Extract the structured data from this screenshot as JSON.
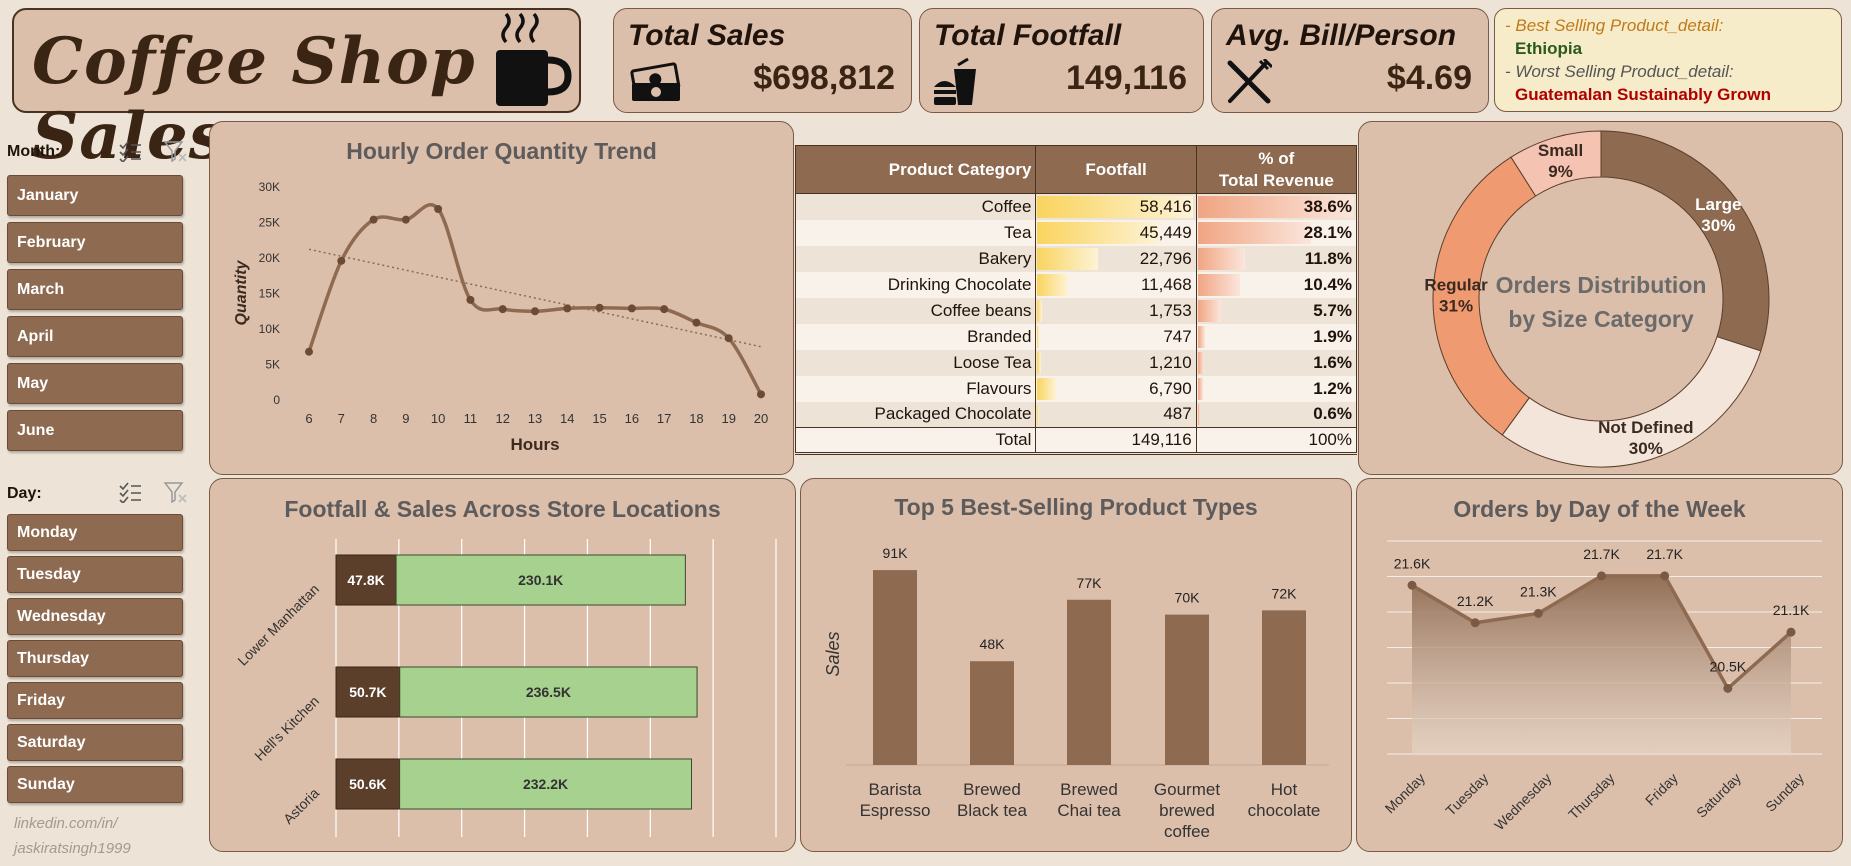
{
  "header": {
    "title": "Coffee Shop Sales"
  },
  "kpis": {
    "total_sales": {
      "label": "Total Sales",
      "value": "$698,812"
    },
    "total_footfall": {
      "label": "Total Footfall",
      "value": "149,116"
    },
    "avg_bill": {
      "label": "Avg. Bill/Person",
      "value": "$4.69"
    }
  },
  "best": {
    "best_label": "- Best Selling Product_detail:",
    "best_value": "Ethiopia",
    "worst_label": "- Worst Selling Product_detail:",
    "worst_value": "Guatemalan Sustainably Grown"
  },
  "slicers": {
    "month": {
      "label": "Month:",
      "items": [
        "January",
        "February",
        "March",
        "April",
        "May",
        "June"
      ]
    },
    "day": {
      "label": "Day:",
      "items": [
        "Monday",
        "Tuesday",
        "Wednesday",
        "Thursday",
        "Friday",
        "Saturday",
        "Sunday"
      ]
    }
  },
  "footer": {
    "line1": "linkedin.com/in/",
    "line2": "jaskiratsingh1999"
  },
  "table": {
    "headers": [
      "Product Category",
      "Footfall",
      "% of",
      "Total Revenue"
    ],
    "rows": [
      {
        "category": "Coffee",
        "footfall": "58,416",
        "pct": "38.6%",
        "footfall_n": 58416,
        "pct_n": 38.6
      },
      {
        "category": "Tea",
        "footfall": "45,449",
        "pct": "28.1%",
        "footfall_n": 45449,
        "pct_n": 28.1
      },
      {
        "category": "Bakery",
        "footfall": "22,796",
        "pct": "11.8%",
        "footfall_n": 22796,
        "pct_n": 11.8
      },
      {
        "category": "Drinking Chocolate",
        "footfall": "11,468",
        "pct": "10.4%",
        "footfall_n": 11468,
        "pct_n": 10.4
      },
      {
        "category": "Coffee beans",
        "footfall": "1,753",
        "pct": "5.7%",
        "footfall_n": 1753,
        "pct_n": 5.7
      },
      {
        "category": "Branded",
        "footfall": "747",
        "pct": "1.9%",
        "footfall_n": 747,
        "pct_n": 1.9
      },
      {
        "category": "Loose Tea",
        "footfall": "1,210",
        "pct": "1.6%",
        "footfall_n": 1210,
        "pct_n": 1.6
      },
      {
        "category": "Flavours",
        "footfall": "6,790",
        "pct": "1.2%",
        "footfall_n": 6790,
        "pct_n": 1.2
      },
      {
        "category": "Packaged Chocolate",
        "footfall": "487",
        "pct": "0.6%",
        "footfall_n": 487,
        "pct_n": 0.6
      }
    ],
    "total": {
      "label": "Total",
      "footfall": "149,116",
      "pct": "100%"
    }
  },
  "colors": {
    "brown": "#8e6a51",
    "dark": "#5b3f2b",
    "green": "#a6d18e",
    "peach": "#ef9a70",
    "pink": "#f5c3b1",
    "cream": "#f3e5d9"
  },
  "chart_data": [
    {
      "type": "line",
      "title": "Hourly Order Quantity Trend",
      "xlabel": "Hours",
      "ylabel": "Quantity",
      "x": [
        6,
        7,
        8,
        9,
        10,
        11,
        12,
        13,
        14,
        15,
        16,
        17,
        18,
        19,
        20
      ],
      "values": [
        6800,
        19600,
        25400,
        25400,
        26900,
        14100,
        12800,
        12500,
        12900,
        13000,
        12900,
        12800,
        10900,
        8700,
        800
      ],
      "ylim": [
        0,
        30000
      ],
      "yticks": [
        "0",
        "5K",
        "10K",
        "15K",
        "20K",
        "25K",
        "30K"
      ],
      "trendline": true
    },
    {
      "type": "bar",
      "title": "Footfall & Sales Across Store Locations",
      "categories": [
        "Lower Manhattan",
        "Hell's Kitchen",
        "Astoria"
      ],
      "series": [
        {
          "values": [
            47.8,
            50.7,
            50.6
          ],
          "labels": [
            "47.8K",
            "50.7K",
            "50.6K"
          ]
        },
        {
          "values": [
            230.1,
            236.5,
            232.2
          ],
          "labels": [
            "230.1K",
            "236.5K",
            "232.2K"
          ]
        }
      ],
      "stacked": true,
      "orientation": "horizontal",
      "xlim": [
        0,
        350
      ]
    },
    {
      "type": "pie",
      "title": "Orders Distribution by Size Category",
      "title_lines": [
        "Orders Distribution",
        "by Size Category"
      ],
      "categories": [
        "Large",
        "Not Defined",
        "Regular",
        "Small"
      ],
      "values": [
        30,
        30,
        31,
        9
      ],
      "labels": [
        "30%",
        "30%",
        "31%",
        "9%"
      ]
    },
    {
      "type": "bar",
      "title": "Top 5 Best-Selling Product Types",
      "ylabel": "Sales",
      "categories": [
        "Barista Espresso",
        "Brewed Black tea",
        "Brewed Chai tea",
        "Gourmet brewed coffee",
        "Hot chocolate"
      ],
      "category_lines": [
        [
          "Barista",
          "Espresso"
        ],
        [
          "Brewed",
          "Black tea"
        ],
        [
          "Brewed",
          "Chai tea"
        ],
        [
          "Gourmet",
          "brewed",
          "coffee"
        ],
        [
          "Hot",
          "chocolate"
        ]
      ],
      "values": [
        91,
        48,
        77,
        70,
        72
      ],
      "labels": [
        "91K",
        "48K",
        "77K",
        "70K",
        "72K"
      ],
      "ylim": [
        0,
        100
      ]
    },
    {
      "type": "area",
      "title": "Orders by Day of the Week",
      "categories": [
        "Monday",
        "Tuesday",
        "Wednesday",
        "Thursday",
        "Friday",
        "Saturday",
        "Sunday"
      ],
      "values": [
        21.6,
        21.2,
        21.3,
        21.7,
        21.7,
        20.5,
        21.1
      ],
      "labels": [
        "21.6K",
        "21.2K",
        "21.3K",
        "21.7K",
        "21.7K",
        "20.5K",
        "21.1K"
      ],
      "ylim": [
        19.8,
        22.2
      ]
    }
  ]
}
